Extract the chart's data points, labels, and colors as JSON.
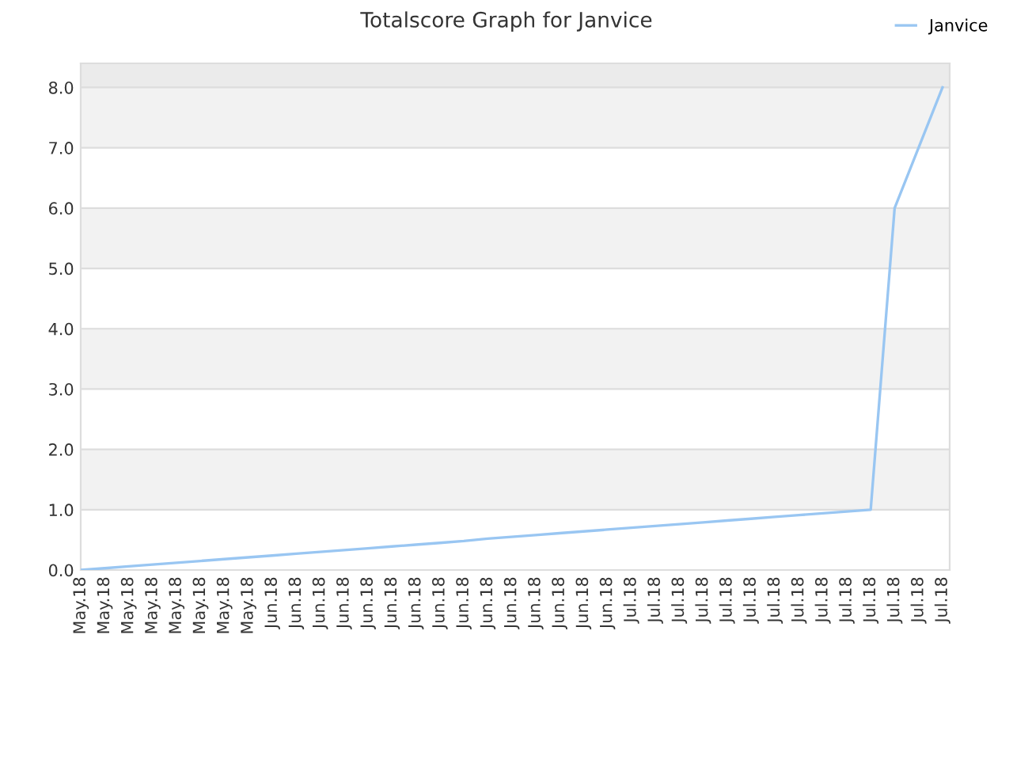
{
  "chart_data": {
    "type": "line",
    "title": "Totalscore Graph for Janvice",
    "categories": [
      "May.18",
      "May.18",
      "May.18",
      "May.18",
      "May.18",
      "May.18",
      "May.18",
      "May.18",
      "Jun.18",
      "Jun.18",
      "Jun.18",
      "Jun.18",
      "Jun.18",
      "Jun.18",
      "Jun.18",
      "Jun.18",
      "Jun.18",
      "Jun.18",
      "Jun.18",
      "Jun.18",
      "Jun.18",
      "Jun.18",
      "Jun.18",
      "Jul.18",
      "Jul.18",
      "Jul.18",
      "Jul.18",
      "Jul.18",
      "Jul.18",
      "Jul.18",
      "Jul.18",
      "Jul.18",
      "Jul.18",
      "Jul.18",
      "Jul.18",
      "Jul.18",
      "Jul.18"
    ],
    "series": [
      {
        "name": "Janvice",
        "color": "#99c6f2",
        "values": [
          0,
          0.03,
          0.06,
          0.09,
          0.12,
          0.15,
          0.18,
          0.21,
          0.24,
          0.27,
          0.3,
          0.33,
          0.36,
          0.39,
          0.42,
          0.45,
          0.48,
          0.52,
          0.55,
          0.58,
          0.61,
          0.64,
          0.67,
          0.7,
          0.73,
          0.76,
          0.79,
          0.82,
          0.85,
          0.88,
          0.91,
          0.94,
          0.97,
          1.0,
          6.0,
          7.0,
          8.0
        ]
      }
    ],
    "ylim": [
      0,
      8.4
    ],
    "yticks": [
      {
        "value": 0,
        "label": "0.0"
      },
      {
        "value": 1,
        "label": "1.0"
      },
      {
        "value": 2,
        "label": "2.0"
      },
      {
        "value": 3,
        "label": "3.0"
      },
      {
        "value": 4,
        "label": "4.0"
      },
      {
        "value": 5,
        "label": "5.0"
      },
      {
        "value": 6,
        "label": "6.0"
      },
      {
        "value": 7,
        "label": "7.0"
      },
      {
        "value": 8,
        "label": "8.0"
      }
    ],
    "bands": [
      {
        "axis": "y",
        "from": 1,
        "to": 2,
        "color": "#f2f2f2"
      },
      {
        "axis": "y",
        "from": 3,
        "to": 4,
        "color": "#f2f2f2"
      },
      {
        "axis": "y",
        "from": 5,
        "to": 6,
        "color": "#f2f2f2"
      },
      {
        "axis": "y",
        "from": 7,
        "to": 8,
        "color": "#f2f2f2"
      },
      {
        "axis": "y",
        "from": 8,
        "to": 8.4,
        "color": "#ebebeb"
      }
    ],
    "grid": "y",
    "legend": "top right",
    "marker": "none",
    "line_style": "solid"
  }
}
